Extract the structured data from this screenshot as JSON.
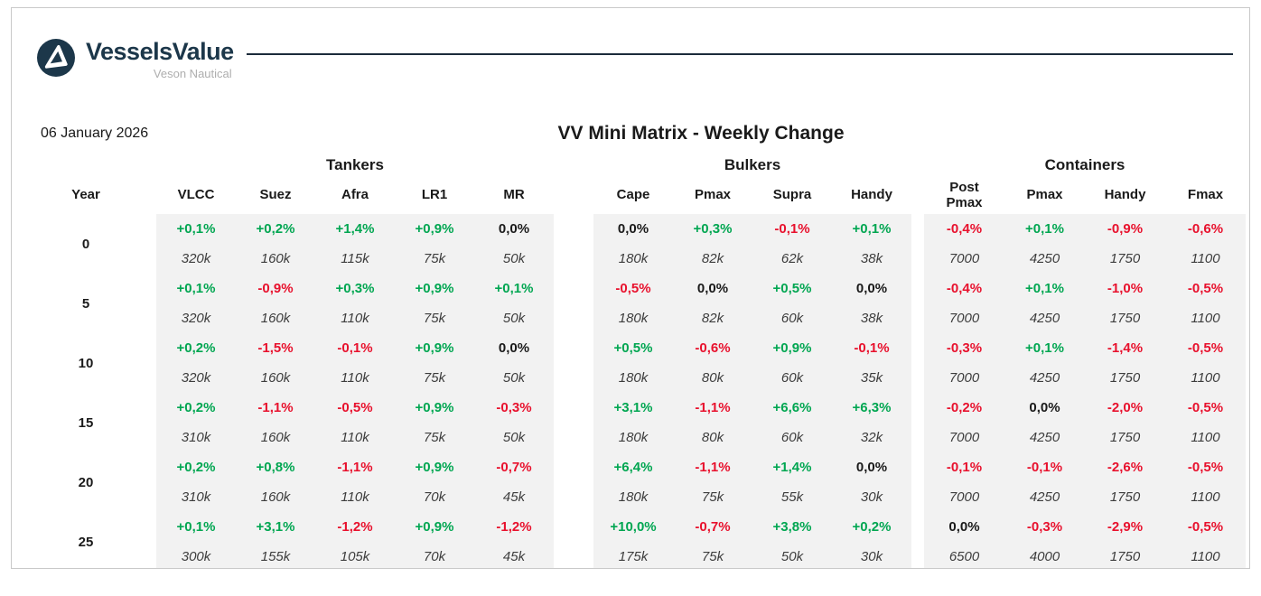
{
  "meta": {
    "date": "06 January 2026",
    "title": "VV Mini Matrix - Weekly Change"
  },
  "header": {
    "brand": "VesselsValue",
    "brand_sub": "Veson Nautical",
    "logo_icon": "vesselsvalue-circle-triangle-logo"
  },
  "colors": {
    "pos": "#00A651",
    "neg": "#E8112D",
    "neu": "#1A1A1A",
    "navy": "#1C374A",
    "rule": "#1B2B3A",
    "cell_bg": "#F2F2F2",
    "sub_gray": "#AEAEAE"
  },
  "table": {
    "year_header": "Year",
    "groups": [
      {
        "label": "Tankers",
        "columns": [
          "VLCC",
          "Suez",
          "Afra",
          "LR1",
          "MR"
        ]
      },
      {
        "label": "Bulkers",
        "columns": [
          "Cape",
          "Pmax",
          "Supra",
          "Handy"
        ]
      },
      {
        "label": "Containers",
        "columns": [
          "Post Pmax",
          "Pmax",
          "Handy",
          "Fmax"
        ]
      }
    ],
    "rows": [
      {
        "year": "0",
        "groups": [
          {
            "pct": [
              "+0,1%",
              "+0,2%",
              "+1,4%",
              "+0,9%",
              "0,0%"
            ],
            "values": [
              "320k",
              "160k",
              "115k",
              "75k",
              "50k"
            ]
          },
          {
            "pct": [
              "0,0%",
              "+0,3%",
              "-0,1%",
              "+0,1%"
            ],
            "values": [
              "180k",
              "82k",
              "62k",
              "38k"
            ]
          },
          {
            "pct": [
              "-0,4%",
              "+0,1%",
              "-0,9%",
              "-0,6%"
            ],
            "values": [
              "7000",
              "4250",
              "1750",
              "1100"
            ]
          }
        ]
      },
      {
        "year": "5",
        "groups": [
          {
            "pct": [
              "+0,1%",
              "-0,9%",
              "+0,3%",
              "+0,9%",
              "+0,1%"
            ],
            "values": [
              "320k",
              "160k",
              "110k",
              "75k",
              "50k"
            ]
          },
          {
            "pct": [
              "-0,5%",
              "0,0%",
              "+0,5%",
              "0,0%"
            ],
            "values": [
              "180k",
              "82k",
              "60k",
              "38k"
            ]
          },
          {
            "pct": [
              "-0,4%",
              "+0,1%",
              "-1,0%",
              "-0,5%"
            ],
            "values": [
              "7000",
              "4250",
              "1750",
              "1100"
            ]
          }
        ]
      },
      {
        "year": "10",
        "groups": [
          {
            "pct": [
              "+0,2%",
              "-1,5%",
              "-0,1%",
              "+0,9%",
              "0,0%"
            ],
            "values": [
              "320k",
              "160k",
              "110k",
              "75k",
              "50k"
            ]
          },
          {
            "pct": [
              "+0,5%",
              "-0,6%",
              "+0,9%",
              "-0,1%"
            ],
            "values": [
              "180k",
              "80k",
              "60k",
              "35k"
            ]
          },
          {
            "pct": [
              "-0,3%",
              "+0,1%",
              "-1,4%",
              "-0,5%"
            ],
            "values": [
              "7000",
              "4250",
              "1750",
              "1100"
            ]
          }
        ]
      },
      {
        "year": "15",
        "groups": [
          {
            "pct": [
              "+0,2%",
              "-1,1%",
              "-0,5%",
              "+0,9%",
              "-0,3%"
            ],
            "values": [
              "310k",
              "160k",
              "110k",
              "75k",
              "50k"
            ]
          },
          {
            "pct": [
              "+3,1%",
              "-1,1%",
              "+6,6%",
              "+6,3%"
            ],
            "values": [
              "180k",
              "80k",
              "60k",
              "32k"
            ]
          },
          {
            "pct": [
              "-0,2%",
              "0,0%",
              "-2,0%",
              "-0,5%"
            ],
            "values": [
              "7000",
              "4250",
              "1750",
              "1100"
            ]
          }
        ]
      },
      {
        "year": "20",
        "groups": [
          {
            "pct": [
              "+0,2%",
              "+0,8%",
              "-1,1%",
              "+0,9%",
              "-0,7%"
            ],
            "values": [
              "310k",
              "160k",
              "110k",
              "70k",
              "45k"
            ]
          },
          {
            "pct": [
              "+6,4%",
              "-1,1%",
              "+1,4%",
              "0,0%"
            ],
            "values": [
              "180k",
              "75k",
              "55k",
              "30k"
            ]
          },
          {
            "pct": [
              "-0,1%",
              "-0,1%",
              "-2,6%",
              "-0,5%"
            ],
            "values": [
              "7000",
              "4250",
              "1750",
              "1100"
            ]
          }
        ]
      },
      {
        "year": "25",
        "groups": [
          {
            "pct": [
              "+0,1%",
              "+3,1%",
              "-1,2%",
              "+0,9%",
              "-1,2%"
            ],
            "values": [
              "300k",
              "155k",
              "105k",
              "70k",
              "45k"
            ]
          },
          {
            "pct": [
              "+10,0%",
              "-0,7%",
              "+3,8%",
              "+0,2%"
            ],
            "values": [
              "175k",
              "75k",
              "50k",
              "30k"
            ]
          },
          {
            "pct": [
              "0,0%",
              "-0,3%",
              "-2,9%",
              "-0,5%"
            ],
            "values": [
              "6500",
              "4000",
              "1750",
              "1100"
            ]
          }
        ]
      }
    ]
  }
}
